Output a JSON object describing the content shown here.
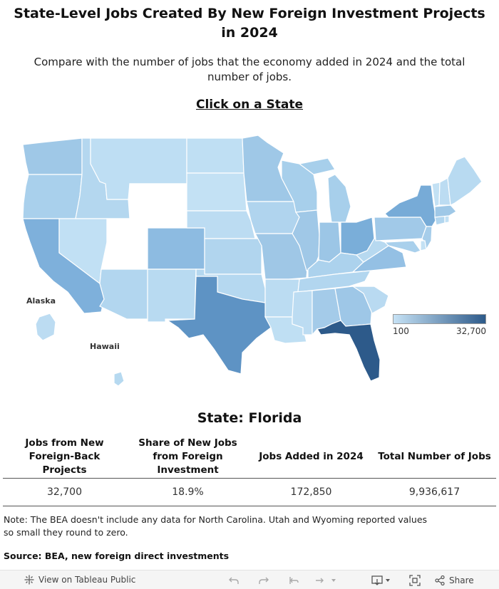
{
  "header": {
    "title_line1": "State-Level Jobs Created By New Foreign Investment Projects",
    "title_line2": "in 2024",
    "subtitle_line1": "Compare with the number of jobs that the economy added in 2024 and the total",
    "subtitle_line2": "number of jobs.",
    "click_label": "Click on a State"
  },
  "map": {
    "alaska_label": "Alaska",
    "hawaii_label": "Hawaii",
    "legend_min": "100",
    "legend_max": "32,700",
    "color_scale": [
      "#c6e2f5",
      "#2d5a8a"
    ],
    "no_data_color": "#ffffff"
  },
  "selected": {
    "heading": "State: Florida",
    "columns": [
      "Jobs from New Foreign-Back Projects",
      "Share of New Jobs from Foreign Investment",
      "Jobs Added in 2024",
      "Total Number of Jobs"
    ],
    "values": [
      "32,700",
      "18.9%",
      "172,850",
      "9,936,617"
    ]
  },
  "footer": {
    "note_line1": "Note: The BEA doesn't include any data for North Carolina. Utah and Wyoming reported values",
    "note_line2": "so small they round to zero.",
    "source": "Source: BEA, new foreign direct investments"
  },
  "toolbar": {
    "view_label": "View on Tableau Public",
    "share_label": "Share",
    "icons": [
      "tableau-icon",
      "undo-icon",
      "redo-icon",
      "revert-icon",
      "refresh-icon",
      "download-icon",
      "fullscreen-icon",
      "share-icon"
    ]
  }
}
